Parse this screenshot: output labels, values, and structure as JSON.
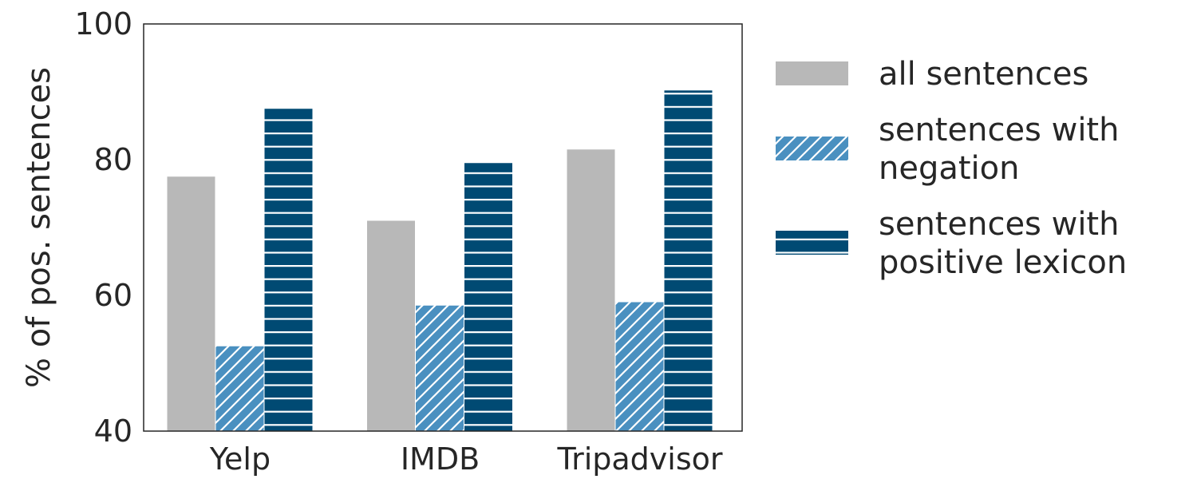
{
  "chart_data": {
    "type": "bar",
    "title": "",
    "xlabel": "",
    "ylabel": "% of pos. sentences",
    "categories": [
      "Yelp",
      "IMDB",
      "Tripadvisor"
    ],
    "ylim": [
      40,
      100
    ],
    "yticks": [
      40,
      60,
      80,
      100
    ],
    "grid": false,
    "legend_position": "right, outside plot",
    "series": [
      {
        "name": "all sentences",
        "values": [
          77.5,
          71.0,
          81.5
        ],
        "color": "#b8b8b8",
        "pattern": "solid"
      },
      {
        "name": "sentences with negation",
        "legend_lines": [
          "sentences with",
          "negation"
        ],
        "values": [
          52.5,
          58.5,
          59.0
        ],
        "color": "#4a90c0",
        "pattern": "diagonal-hatch"
      },
      {
        "name": "sentences with positive lexicon",
        "legend_lines": [
          "sentences with",
          "positive lexicon"
        ],
        "values": [
          87.5,
          79.5,
          90.2
        ],
        "color": "#004a73",
        "pattern": "horizontal-hatch"
      }
    ]
  }
}
